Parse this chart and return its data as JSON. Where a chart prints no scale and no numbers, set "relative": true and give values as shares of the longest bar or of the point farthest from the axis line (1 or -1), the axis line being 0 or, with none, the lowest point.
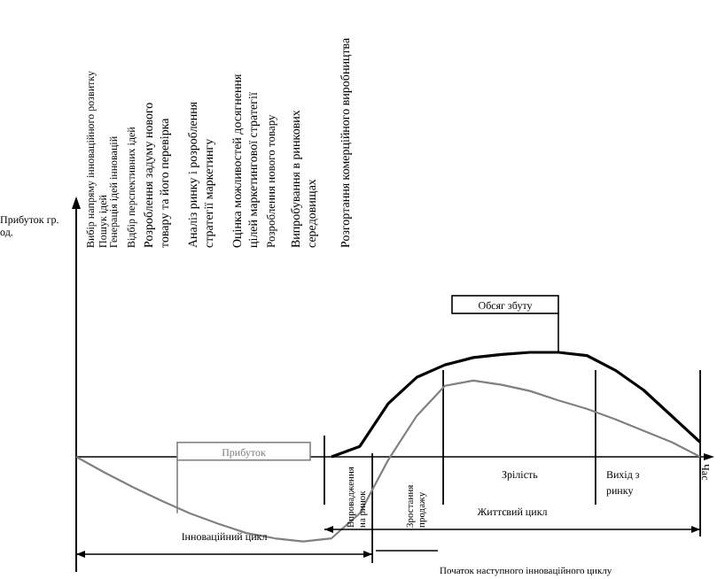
{
  "chart_data": {
    "type": "line",
    "relative": true,
    "categories": [
      null,
      null,
      null,
      null,
      null,
      null,
      null,
      null,
      null,
      null,
      null,
      null,
      null,
      null,
      null,
      null,
      null,
      null,
      null,
      null,
      null,
      null,
      null
    ],
    "series": [
      {
        "name": "Обсяг збуту",
        "color": "#000000",
        "values": [
          null,
          null,
          null,
          null,
          null,
          null,
          null,
          null,
          null,
          0,
          0.1,
          0.51,
          0.76,
          0.88,
          0.95,
          0.98,
          1,
          1,
          0.97,
          0.83,
          0.64,
          0.39,
          0.14
        ]
      },
      {
        "name": "Прибуток",
        "color": "#808080",
        "values": [
          0,
          -0.15,
          -0.29,
          -0.42,
          -0.54,
          -0.64,
          -0.73,
          -0.78,
          -0.81,
          -0.78,
          -0.54,
          -0.03,
          0.39,
          0.68,
          0.73,
          0.69,
          0.63,
          0.54,
          0.46,
          0.36,
          0.25,
          0.14,
          0
        ]
      }
    ],
    "annotations": [
      "Вибір напряму інноваційного розвитку",
      "Пошук ідей",
      "Генерація ідей інновацій",
      "Відбір перспективних ідей",
      "Розроблення задуму нового товару та його перевірка",
      "Аналіз ринку і розроблення стратегії маркетингу",
      "Оцінка можливостей досягнення цілей маркетингової стратегії",
      "Розроблення нового товару",
      "Випробування в ринкових середовищах",
      "Розгортання комерційного виробництва",
      "Впровадження на ринок",
      "Зростання продажу",
      "Зрілість",
      "Вихід з ринку",
      "Інноваційний цикл",
      "Життєвий цикл",
      "Початок наступного інноваційного циклу",
      "Прибуток гр. од.",
      "Час"
    ]
  }
}
